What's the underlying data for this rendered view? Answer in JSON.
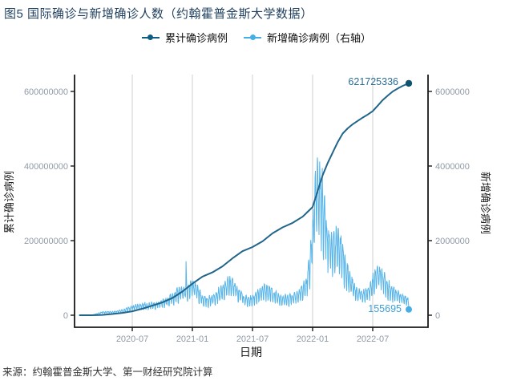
{
  "title": "图5 国际确诊与新增确诊人数（约翰霍普金斯大学数据）",
  "source_note": "来源：约翰霍普金斯大学、第一财经研究院计算",
  "legend": {
    "items": [
      {
        "label": "累计确诊病例",
        "color": "#0f5c85"
      },
      {
        "label": "新增确诊病例（右轴）",
        "color": "#45aee4"
      }
    ]
  },
  "chart_data": {
    "type": "line",
    "title": "图5 国际确诊与新增确诊人数（约翰霍普金斯大学数据）",
    "xlabel": "日期",
    "ylabel_left": "累计确诊病例",
    "ylabel_right": "新增确诊病例",
    "grid": "vertical-only",
    "legend_position": "top-center",
    "x_range": [
      "2020-01",
      "2022-11"
    ],
    "y_left_range": [
      0,
      650000000
    ],
    "y_right_range": [
      0,
      6500000
    ],
    "x_ticks": [
      {
        "t": 6,
        "label": "2020-07"
      },
      {
        "t": 12,
        "label": "2021-01"
      },
      {
        "t": 18,
        "label": "2021-07"
      },
      {
        "t": 24,
        "label": "2022-01"
      },
      {
        "t": 30,
        "label": "2022-07"
      }
    ],
    "y_left_ticks": [
      {
        "v": 0,
        "label": "0"
      },
      {
        "v": 200000000,
        "label": "200000000"
      },
      {
        "v": 400000000,
        "label": "400000000"
      },
      {
        "v": 600000000,
        "label": "600000000"
      }
    ],
    "y_right_ticks": [
      {
        "v": 0,
        "label": "0"
      },
      {
        "v": 2000000,
        "label": "2000000"
      },
      {
        "v": 4000000,
        "label": "4000000"
      },
      {
        "v": 6000000,
        "label": "6000000"
      }
    ],
    "annotations": {
      "cumulative_end": "621725336",
      "new_end": "155695"
    },
    "series": [
      {
        "name": "累计确诊病例",
        "axis": "left",
        "color": "#21658a",
        "dot_color": "#0f516f",
        "end_value": 621725336,
        "t_months": [
          0.7,
          2,
          3,
          4,
          5,
          6,
          7,
          8,
          9,
          10,
          11,
          12,
          13,
          14,
          15,
          16,
          17,
          18,
          19,
          20,
          21,
          22,
          23,
          24,
          24.5,
          25,
          25.5,
          26,
          26.5,
          27,
          27.5,
          28,
          28.5,
          29,
          29.5,
          30,
          30.5,
          31,
          31.5,
          32,
          32.5,
          33,
          33.6
        ],
        "values": [
          10000,
          90000,
          860000,
          3200000,
          6300000,
          10500000,
          17400000,
          25600000,
          34100000,
          46100000,
          63500000,
          84500000,
          103400000,
          114800000,
          131000000,
          152500000,
          171700000,
          182800000,
          198000000,
          219500000,
          235500000,
          247500000,
          264000000,
          290000000,
          333000000,
          375000000,
          408000000,
          436000000,
          464000000,
          487000000,
          501000000,
          512000000,
          521000000,
          530000000,
          538000000,
          547000000,
          562000000,
          577000000,
          589000000,
          600000000,
          608000000,
          615000000,
          621725336
        ]
      },
      {
        "name": "新增确诊病例（右轴）",
        "axis": "right",
        "color": "#56b4e9",
        "dot_color": "#45aee4",
        "end_value": 155695,
        "note": "daily series with strong weekly oscillation; envelope (7-day mean) keypoints below",
        "envelope_t_months": [
          0.7,
          1.5,
          2,
          2.5,
          3,
          3.5,
          4,
          4.5,
          5,
          5.5,
          6,
          6.5,
          7,
          7.5,
          8,
          8.5,
          9,
          9.5,
          10,
          10.5,
          11,
          11.5,
          12,
          12.3,
          12.7,
          13,
          13.5,
          14,
          14.5,
          15,
          15.5,
          15.8,
          16.2,
          16.6,
          17,
          17.5,
          18,
          18.5,
          19,
          19.3,
          19.7,
          20,
          20.5,
          21,
          21.5,
          22,
          22.5,
          23,
          23.4,
          23.7,
          24,
          24.3,
          24.6,
          24.9,
          25.2,
          25.5,
          26,
          26.4,
          26.7,
          27,
          27.4,
          27.8,
          28.2,
          28.6,
          29,
          29.4,
          29.8,
          30.2,
          30.5,
          30.8,
          31.2,
          31.6,
          32,
          32.4,
          32.8,
          33.2,
          33.6
        ],
        "envelope_values": [
          2000,
          4000,
          3000,
          40000,
          75000,
          82000,
          78000,
          95000,
          115000,
          160000,
          200000,
          235000,
          255000,
          260000,
          270000,
          285000,
          310000,
          380000,
          470000,
          560000,
          620000,
          650000,
          740000,
          700000,
          560000,
          430000,
          370000,
          450000,
          540000,
          620000,
          780000,
          820000,
          750000,
          610000,
          470000,
          380000,
          420000,
          540000,
          640000,
          660000,
          610000,
          550000,
          480000,
          430000,
          420000,
          470000,
          540000,
          650000,
          800000,
          1300000,
          1900000,
          3100000,
          3350000,
          3100000,
          2500000,
          2000000,
          1650000,
          1850000,
          1800000,
          1550000,
          1150000,
          850000,
          650000,
          560000,
          520000,
          560000,
          700000,
          950000,
          1080000,
          1050000,
          900000,
          720000,
          600000,
          520000,
          470000,
          430000,
          350000
        ],
        "single_day_spike": {
          "t_months": 11.37,
          "value": 1450000
        }
      }
    ]
  }
}
